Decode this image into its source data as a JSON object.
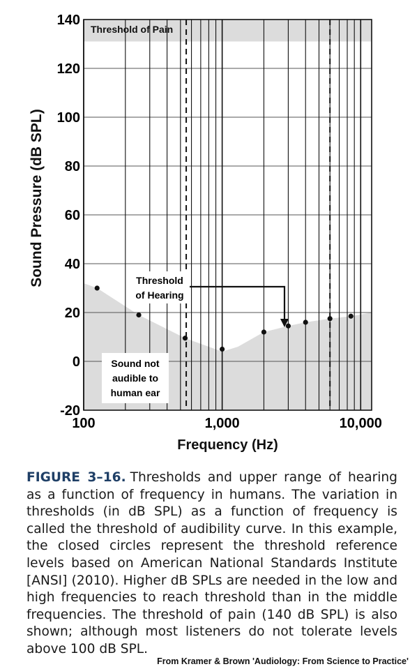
{
  "chart_data": {
    "type": "scatter",
    "x_scale": "log",
    "xlim": [
      100,
      12000
    ],
    "ylim": [
      -20,
      140
    ],
    "xlabel": "Frequency (Hz)",
    "ylabel": "Sound Pressure (dB SPL)",
    "y_ticks": [
      140,
      120,
      100,
      80,
      60,
      40,
      20,
      0,
      -20
    ],
    "x_tick_labels": [
      "100",
      "1,000",
      "10,000"
    ],
    "x_ticks": [
      100,
      1000,
      10000
    ],
    "grid": true,
    "series": [
      {
        "points": [
          {
            "x": 125,
            "y": 30
          },
          {
            "x": 250,
            "y": 19
          },
          {
            "x": 540,
            "y": 9.5
          },
          {
            "x": 1000,
            "y": 5
          },
          {
            "x": 2000,
            "y": 12
          },
          {
            "x": 3000,
            "y": 14.5
          },
          {
            "x": 4000,
            "y": 16
          },
          {
            "x": 6000,
            "y": 17.5
          },
          {
            "x": 8500,
            "y": 18.5
          }
        ]
      }
    ],
    "shaded_region": [
      {
        "x": 100,
        "y": 32
      },
      {
        "x": 125,
        "y": 30
      },
      {
        "x": 250,
        "y": 19
      },
      {
        "x": 540,
        "y": 9.5
      },
      {
        "x": 1000,
        "y": 4
      },
      {
        "x": 1300,
        "y": 6
      },
      {
        "x": 2000,
        "y": 12
      },
      {
        "x": 3000,
        "y": 14.5
      },
      {
        "x": 4000,
        "y": 16
      },
      {
        "x": 6000,
        "y": 17.5
      },
      {
        "x": 8500,
        "y": 18.5
      },
      {
        "x": 12000,
        "y": 20
      }
    ],
    "pain_band": [
      131,
      140
    ],
    "dashed_lines_x": [
      550,
      6000
    ],
    "annotations": {
      "pain": "Threshold of Pain",
      "hearing_line1": "Threshold",
      "hearing_line2": "of Hearing",
      "inaudible_line1": "Sound not",
      "inaudible_line2": "audible to",
      "inaudible_line3": "human ear"
    }
  },
  "caption": {
    "figure_label": "FIGURE 3–16.",
    "text": "Thresholds and upper range of hearing as a function of frequency in humans. The variation in thresholds (in dB SPL) as a function of frequency is called the threshold of audibility curve. In this example, the closed circles represent the threshold reference levels based on American National Standards Institute [ANSI] (2010). Higher dB SPLs are needed in the low and high frequencies to reach threshold than in the middle frequencies. The threshold of pain (140 dB SPL) is also shown; although most listeners do not tolerate levels above 100 dB SPL."
  },
  "credit": "From Kramer & Brown 'Audiology: From Science to Practice'"
}
